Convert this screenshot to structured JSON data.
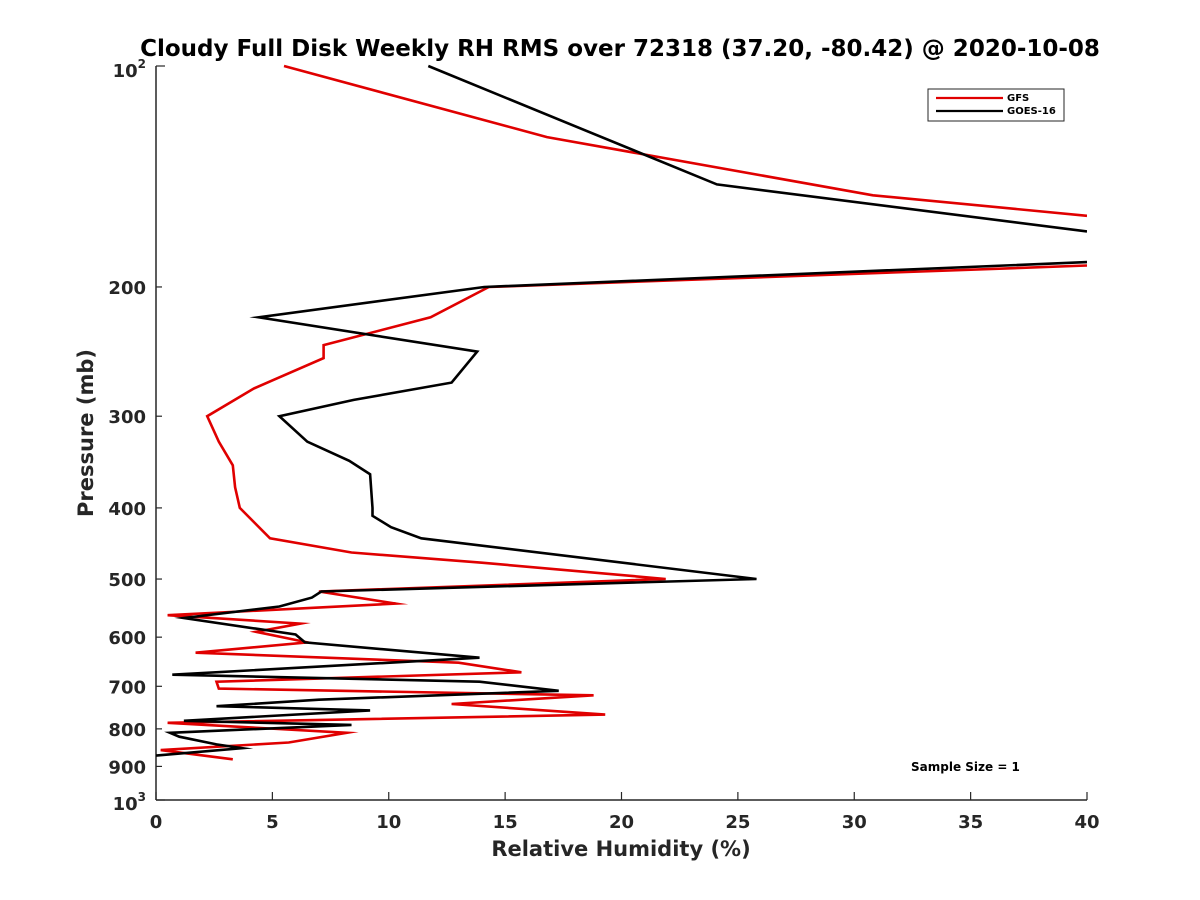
{
  "chart_data": {
    "type": "line",
    "title": "Cloudy Full Disk Weekly RH RMS over 72318 (37.20, -80.42) @ 2020-10-08",
    "xlabel": "Relative Humidity (%)",
    "ylabel": "Pressure (mb)",
    "xlim": [
      0,
      40
    ],
    "ylim": [
      100,
      1000
    ],
    "yscale": "log",
    "ydirection": "reversed",
    "xticks": [
      0,
      5,
      10,
      15,
      20,
      25,
      30,
      35,
      40
    ],
    "xtick_labels": [
      "0",
      "5",
      "10",
      "15",
      "20",
      "25",
      "30",
      "35",
      "40"
    ],
    "yticks": [
      200,
      300,
      400,
      500,
      600,
      700,
      800,
      900
    ],
    "ytick_labels": [
      "200",
      "300",
      "400",
      "500",
      "600",
      "700",
      "800",
      "900"
    ],
    "yend_labels": {
      "top": {
        "base": "10",
        "exp": "2"
      },
      "bottom": {
        "base": "10",
        "exp": "3"
      }
    },
    "grid": false,
    "legend_position": "top-right",
    "annotation": "Sample Size = 1",
    "series": [
      {
        "name": "GFS",
        "color": "#e00000",
        "points": [
          [
            5.5,
            100
          ],
          [
            16.8,
            125
          ],
          [
            30.8,
            150
          ],
          [
            40,
            160
          ],
          [
            null,
            null
          ],
          [
            40,
            187
          ],
          [
            14.3,
            200
          ],
          [
            11.8,
            220
          ],
          [
            7.2,
            240
          ],
          [
            7.2,
            250
          ],
          [
            4.2,
            275
          ],
          [
            2.2,
            300
          ],
          [
            2.7,
            325
          ],
          [
            3.3,
            350
          ],
          [
            3.4,
            375
          ],
          [
            3.6,
            400
          ],
          [
            4.9,
            440
          ],
          [
            8.4,
            460
          ],
          [
            14.0,
            475
          ],
          [
            21.9,
            500
          ],
          [
            7.0,
            520
          ],
          [
            10.3,
            540
          ],
          [
            0.5,
            560
          ],
          [
            6.2,
            575
          ],
          [
            4.3,
            590
          ],
          [
            6.5,
            610
          ],
          [
            1.7,
            630
          ],
          [
            13.0,
            650
          ],
          [
            15.7,
            670
          ],
          [
            2.6,
            690
          ],
          [
            2.7,
            705
          ],
          [
            18.8,
            720
          ],
          [
            12.7,
            740
          ],
          [
            19.3,
            765
          ],
          [
            0.5,
            785
          ],
          [
            8.2,
            810
          ],
          [
            5.7,
            835
          ],
          [
            0.2,
            855
          ],
          [
            3.3,
            880
          ]
        ]
      },
      {
        "name": "GOES-16",
        "color": "#000000",
        "points": [
          [
            11.7,
            100
          ],
          [
            24.1,
            145
          ],
          [
            40,
            168
          ],
          [
            null,
            null
          ],
          [
            40,
            185
          ],
          [
            14.1,
            200
          ],
          [
            4.4,
            220
          ],
          [
            13.8,
            245
          ],
          [
            12.7,
            270
          ],
          [
            8.5,
            285
          ],
          [
            5.3,
            300
          ],
          [
            6.5,
            325
          ],
          [
            8.3,
            345
          ],
          [
            9.2,
            360
          ],
          [
            9.3,
            400
          ],
          [
            9.3,
            410
          ],
          [
            10.1,
            425
          ],
          [
            11.4,
            440
          ],
          [
            25.8,
            500
          ],
          [
            7.1,
            520
          ],
          [
            6.7,
            530
          ],
          [
            5.3,
            545
          ],
          [
            1.2,
            565
          ],
          [
            6.0,
            595
          ],
          [
            6.4,
            610
          ],
          [
            13.9,
            640
          ],
          [
            0.7,
            675
          ],
          [
            13.9,
            690
          ],
          [
            17.3,
            710
          ],
          [
            7.0,
            730
          ],
          [
            2.6,
            745
          ],
          [
            9.2,
            755
          ],
          [
            1.2,
            780
          ],
          [
            8.4,
            790
          ],
          [
            0.6,
            810
          ],
          [
            1.0,
            820
          ],
          [
            2.6,
            840
          ],
          [
            3.7,
            850
          ],
          [
            0,
            870
          ]
        ]
      }
    ]
  }
}
